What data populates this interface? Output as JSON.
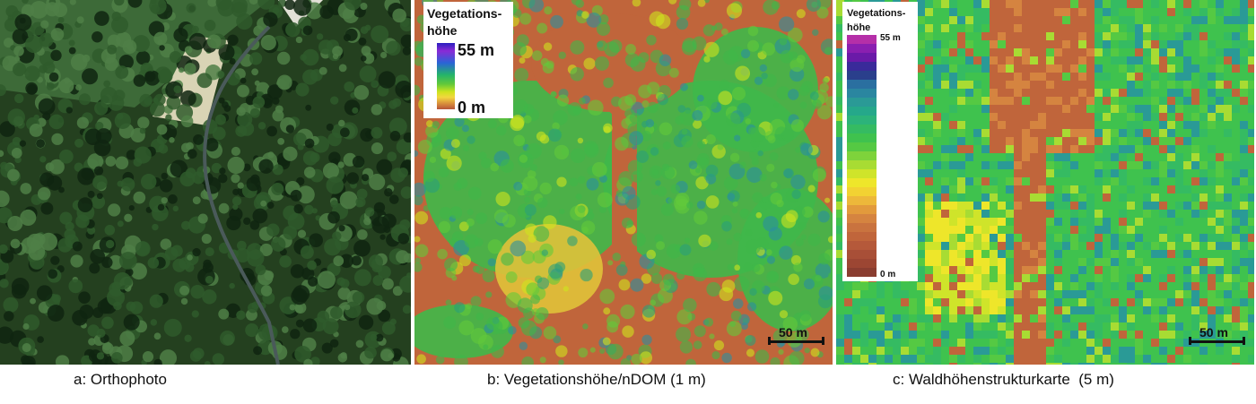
{
  "captions": {
    "a": "a: Orthophoto",
    "b": "b: Vegetationshöhe/nDOM (1 m)",
    "c": "c: Waldhöhenstrukturkarte  (5 m)"
  },
  "legend_b": {
    "title": "Vegetations-\nhöhe",
    "max_label": "55 m",
    "min_label": "0 m"
  },
  "legend_c": {
    "title": "Vegetations-\nhöhe",
    "max_label": "55 m",
    "min_label": "0 m"
  },
  "scalebar": {
    "b_label": "50 m",
    "c_label": "50 m"
  },
  "colors": {
    "forest_dark": "#1f3a1c",
    "clearing": "#d9d4b5",
    "bare_ground": "#c0653b",
    "canopy_green": "#3fb84a",
    "canopy_yellow": "#e6de2e",
    "canopy_blue": "#2a8fa0"
  },
  "ramp_c_colors": [
    "#b52fa8",
    "#8a1fb0",
    "#6a1aa8",
    "#3a2a9a",
    "#2a3f8c",
    "#2a6fa0",
    "#2a86a0",
    "#2a9a96",
    "#25a88a",
    "#2cb37a",
    "#35bb62",
    "#3fc24e",
    "#55c943",
    "#7ed33b",
    "#a8dc33",
    "#cfe42a",
    "#eee62a",
    "#f2d232",
    "#edb83a",
    "#e29a3c",
    "#d58440",
    "#c9733f",
    "#c0653b",
    "#b5593a",
    "#a84f37",
    "#9c4633",
    "#8a3d30"
  ]
}
